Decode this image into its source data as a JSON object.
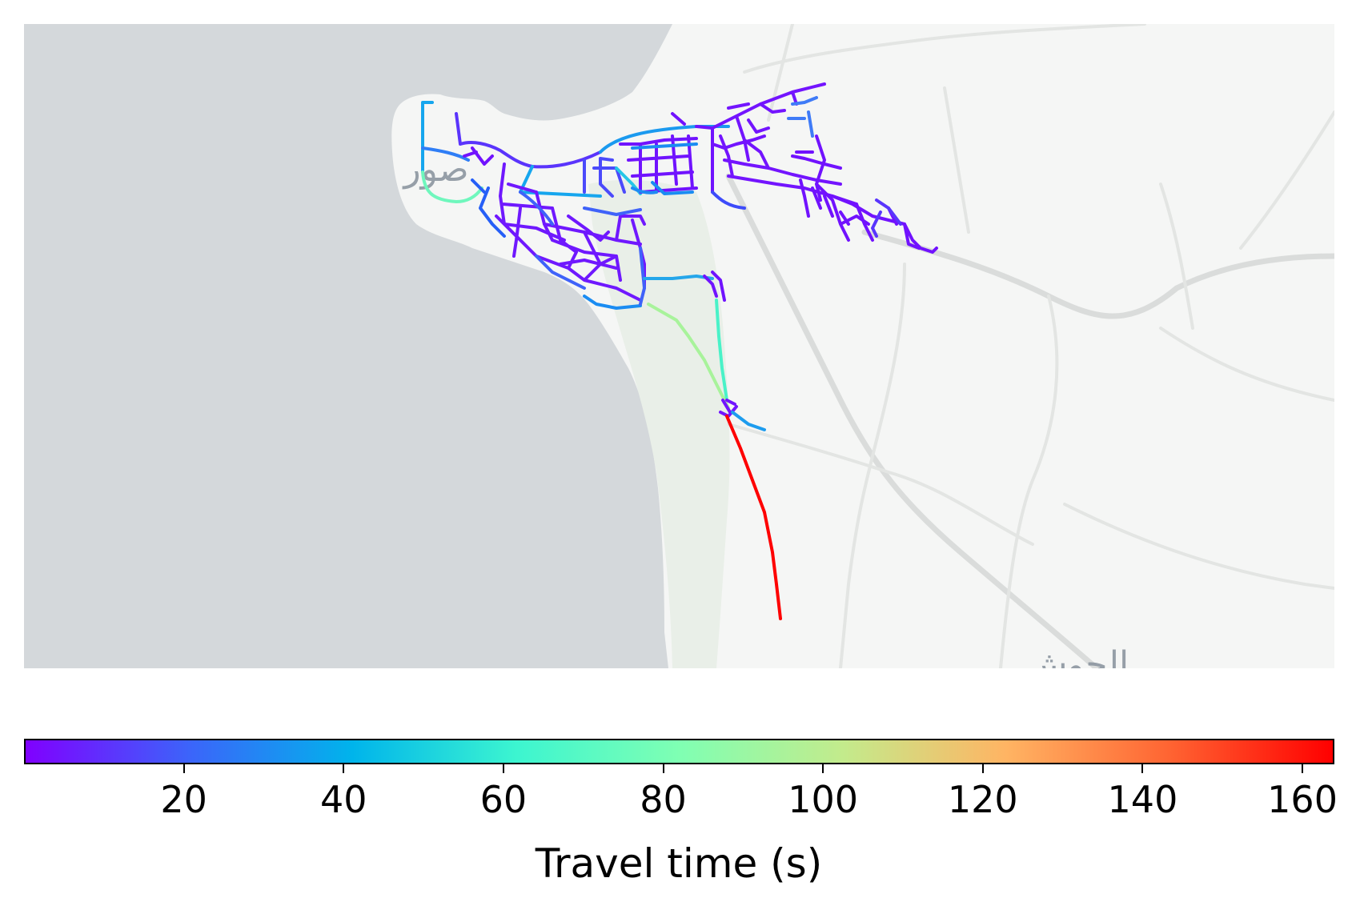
{
  "map": {
    "place_labels": [
      {
        "name": "place-label-sur",
        "text": "صور"
      },
      {
        "name": "place-label-south",
        "text": "الحوش"
      }
    ],
    "colors": {
      "sea": "#d4d8db",
      "land": "#f5f6f5",
      "park": "#e9efe8",
      "minor_road": "#e3e5e3",
      "major_road": "#dadcdb"
    }
  },
  "colorbar": {
    "title": "Travel time (s)",
    "min": 0,
    "max": 164,
    "ticks": [
      {
        "value": 20,
        "label": "20"
      },
      {
        "value": 40,
        "label": "40"
      },
      {
        "value": 60,
        "label": "60"
      },
      {
        "value": 80,
        "label": "80"
      },
      {
        "value": 100,
        "label": "100"
      },
      {
        "value": 120,
        "label": "120"
      },
      {
        "value": 140,
        "label": "140"
      },
      {
        "value": 160,
        "label": "160"
      }
    ],
    "colormap": "rainbow",
    "colormap_stops": [
      "#8000ff",
      "#3c64fa",
      "#00b4eb",
      "#3cf5d0",
      "#7fffb3",
      "#c3eb8c",
      "#ffb463",
      "#ff6432",
      "#ff0000"
    ]
  }
}
